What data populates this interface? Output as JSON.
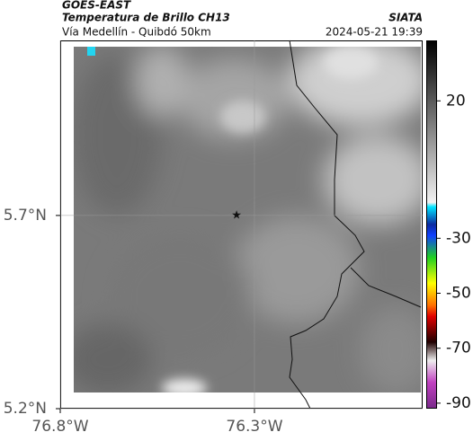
{
  "header": {
    "title": "GOES-EAST",
    "subtitle": "Temperatura de Brillo CH13",
    "source": "SIATA",
    "route": "Vía Medellín - Quibdó 50km",
    "timestamp": "2024-05-21 19:39"
  },
  "map": {
    "xlim": [
      -76.8,
      -75.867
    ],
    "ylim": [
      5.2,
      6.153
    ],
    "xticks": [
      {
        "value": -76.8,
        "label": "76.8°W"
      },
      {
        "value": -76.3,
        "label": "76.3°W"
      }
    ],
    "yticks": [
      {
        "value": 5.7,
        "label": "5.7°N"
      },
      {
        "value": 5.2,
        "label": "5.2°N"
      }
    ],
    "marker": {
      "x": -76.346,
      "y": 5.7
    }
  },
  "colorbar": {
    "ylim": [
      -92,
      42
    ],
    "ticks": [
      20,
      -30,
      -50,
      -70,
      -90
    ]
  }
}
